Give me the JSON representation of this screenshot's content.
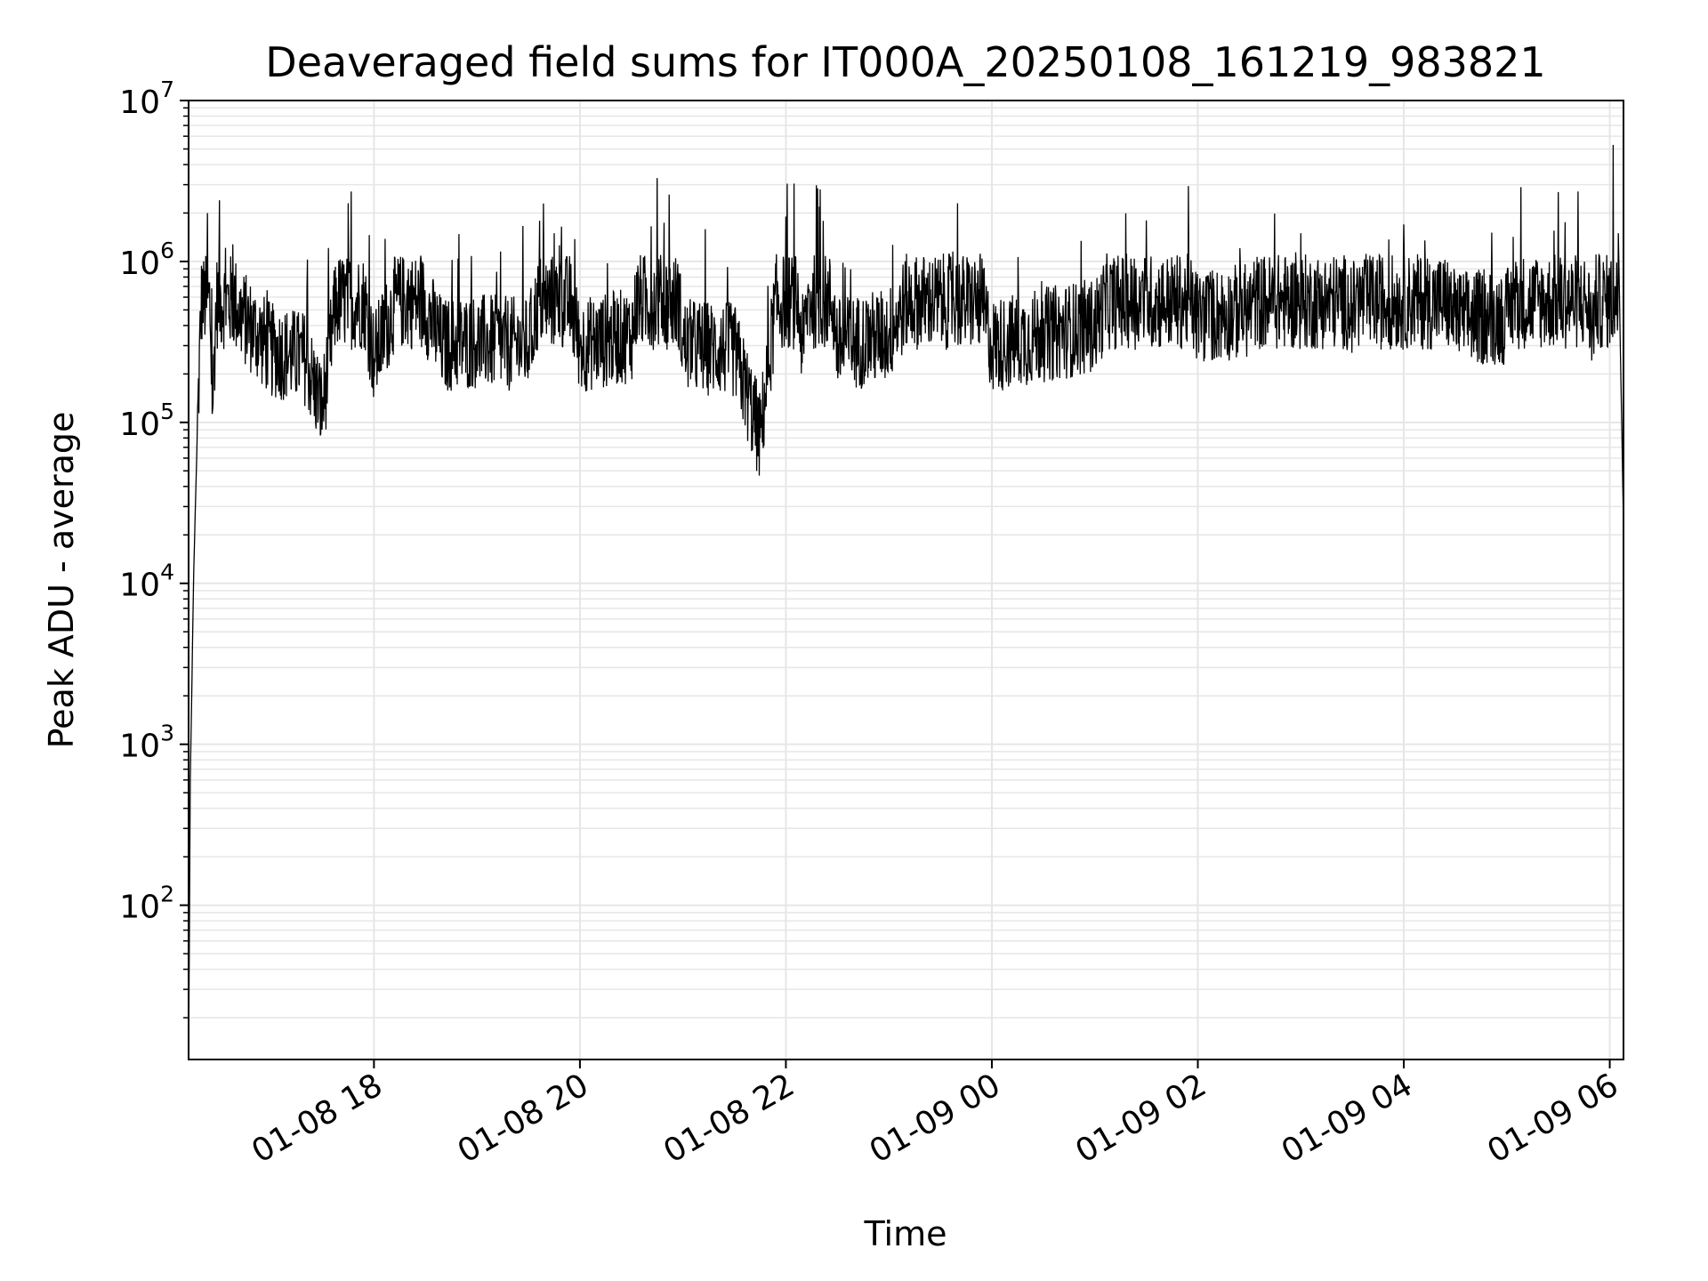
{
  "chart_data": {
    "type": "line",
    "title": "Deaveraged field sums for IT000A_20250108_161219_983821",
    "xlabel": "Time",
    "ylabel": "Peak ADU - average",
    "y_scale": "log",
    "ylim": [
      11,
      10000000
    ],
    "xlim": [
      "2025-01-08 16:12",
      "2025-01-09 06:08"
    ],
    "grid": true,
    "line_color": "#000000",
    "grid_color": "#e6e6e6",
    "x_ticks": [
      {
        "value": "2025-01-08 18:00",
        "label": "01-08 18"
      },
      {
        "value": "2025-01-08 20:00",
        "label": "01-08 20"
      },
      {
        "value": "2025-01-08 22:00",
        "label": "01-08 22"
      },
      {
        "value": "2025-01-09 00:00",
        "label": "01-09 00"
      },
      {
        "value": "2025-01-09 02:00",
        "label": "01-09 02"
      },
      {
        "value": "2025-01-09 04:00",
        "label": "01-09 04"
      },
      {
        "value": "2025-01-09 06:00",
        "label": "01-09 06"
      }
    ],
    "y_ticks": [
      {
        "value": 100,
        "base": "10",
        "exp": "2"
      },
      {
        "value": 1000,
        "base": "10",
        "exp": "3"
      },
      {
        "value": 10000,
        "base": "10",
        "exp": "4"
      },
      {
        "value": 100000,
        "base": "10",
        "exp": "5"
      },
      {
        "value": 1000000,
        "base": "10",
        "exp": "6"
      },
      {
        "value": 10000000,
        "base": "10",
        "exp": "7"
      }
    ],
    "series": [
      {
        "points": [
          [
            "2025-01-08 16:12",
            11
          ],
          [
            "2025-01-08 16:13",
            600
          ],
          [
            "2025-01-08 16:15",
            12000
          ],
          [
            "2025-01-08 16:17",
            80000
          ],
          [
            "2025-01-08 16:20",
            900000
          ],
          [
            "2025-01-08 16:23",
            2000000
          ],
          [
            "2025-01-08 16:26",
            120000
          ],
          [
            "2025-01-08 16:30",
            2400000
          ],
          [
            "2025-01-08 16:40",
            500000
          ],
          [
            "2025-01-08 17:00",
            280000
          ],
          [
            "2025-01-08 17:20",
            250000
          ],
          [
            "2025-01-08 17:30",
            120000
          ],
          [
            "2025-01-08 17:45",
            2300000
          ],
          [
            "2025-01-08 18:00",
            250000
          ],
          [
            "2025-01-08 18:20",
            900000
          ],
          [
            "2025-01-08 18:40",
            300000
          ],
          [
            "2025-01-08 19:00",
            320000
          ],
          [
            "2025-01-08 19:30",
            300000
          ],
          [
            "2025-01-08 19:45",
            1500000
          ],
          [
            "2025-01-08 20:00",
            300000
          ],
          [
            "2025-01-08 20:30",
            350000
          ],
          [
            "2025-01-08 20:45",
            3300000
          ],
          [
            "2025-01-08 20:52",
            2600000
          ],
          [
            "2025-01-08 21:00",
            300000
          ],
          [
            "2025-01-08 21:30",
            280000
          ],
          [
            "2025-01-08 21:45",
            80000
          ],
          [
            "2025-01-08 22:00",
            1900000
          ],
          [
            "2025-01-08 22:10",
            300000
          ],
          [
            "2025-01-08 22:20",
            2800000
          ],
          [
            "2025-01-08 22:30",
            300000
          ],
          [
            "2025-01-08 23:00",
            350000
          ],
          [
            "2025-01-08 23:40",
            2300000
          ],
          [
            "2025-01-09 00:00",
            300000
          ],
          [
            "2025-01-09 00:30",
            350000
          ],
          [
            "2025-01-09 01:00",
            400000
          ],
          [
            "2025-01-09 01:30",
            1800000
          ],
          [
            "2025-01-09 02:00",
            450000
          ],
          [
            "2025-01-09 02:30",
            500000
          ],
          [
            "2025-01-09 03:00",
            1500000
          ],
          [
            "2025-01-09 03:30",
            500000
          ],
          [
            "2025-01-09 04:00",
            1700000
          ],
          [
            "2025-01-09 04:30",
            450000
          ],
          [
            "2025-01-09 05:00",
            450000
          ],
          [
            "2025-01-09 05:30",
            2700000
          ],
          [
            "2025-01-09 05:50",
            400000
          ],
          [
            "2025-01-09 06:02",
            5300000
          ],
          [
            "2025-01-09 06:05",
            1500000
          ],
          [
            "2025-01-09 06:08",
            23000
          ]
        ]
      }
    ]
  }
}
